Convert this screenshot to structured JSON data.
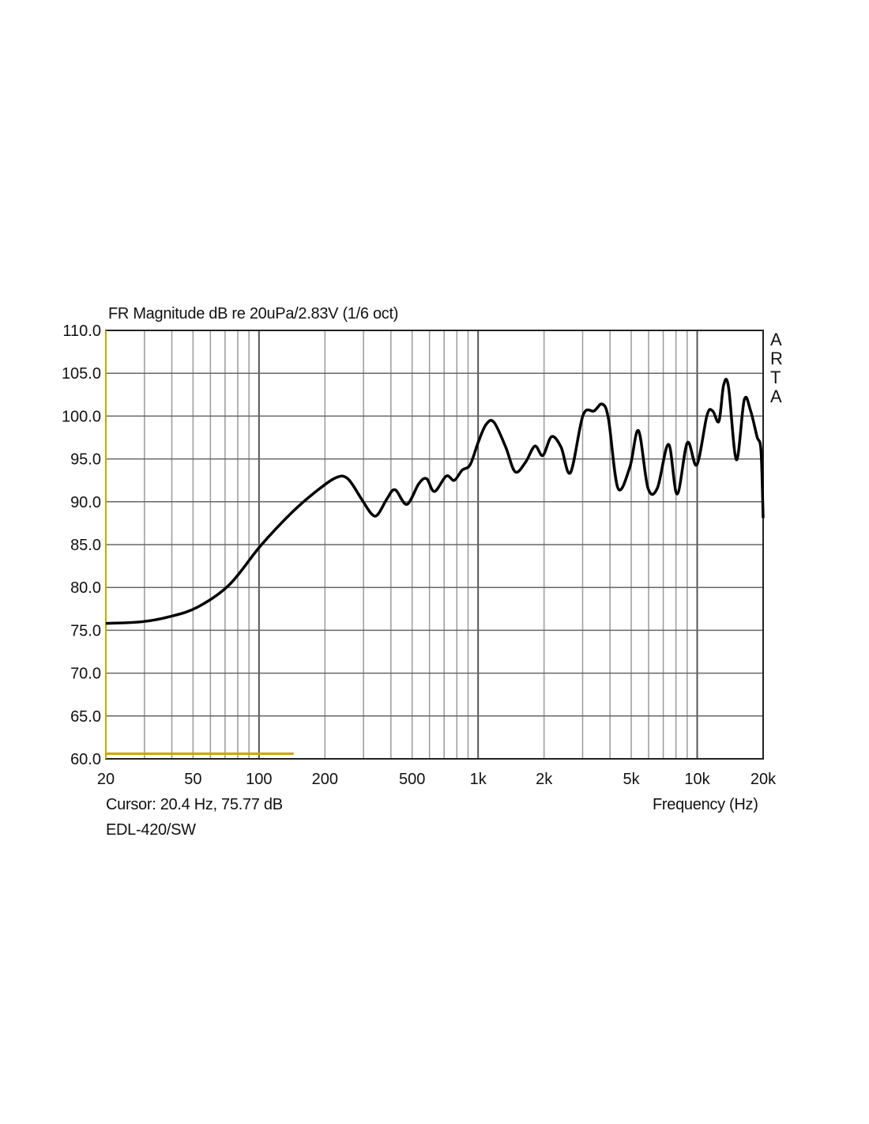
{
  "chart_data": {
    "type": "line",
    "title": "FR Magnitude dB re 20uPa/2.83V (1/6 oct)",
    "xlabel": "Frequency (Hz)",
    "ylabel": "",
    "xscale": "log",
    "xlim": [
      20,
      20000
    ],
    "ylim": [
      60,
      110
    ],
    "grid": true,
    "y_ticks": [
      "110.0",
      "105.0",
      "100.0",
      "95.0",
      "90.0",
      "85.0",
      "80.0",
      "75.0",
      "70.0",
      "65.0",
      "60.0"
    ],
    "x_ticks": [
      {
        "value": 20,
        "label": "20"
      },
      {
        "value": 50,
        "label": "50"
      },
      {
        "value": 100,
        "label": "100"
      },
      {
        "value": 200,
        "label": "200"
      },
      {
        "value": 500,
        "label": "500"
      },
      {
        "value": 1000,
        "label": "1k"
      },
      {
        "value": 2000,
        "label": "2k"
      },
      {
        "value": 5000,
        "label": "5k"
      },
      {
        "value": 10000,
        "label": "10k"
      },
      {
        "value": 20000,
        "label": "20k"
      }
    ],
    "watermark": "ARTA",
    "cursor_text": "Cursor: 20.4 Hz, 75.77 dB",
    "series_name": "EDL-420/SW",
    "cursor_marker": {
      "freq_range": [
        20,
        144
      ],
      "db": 60.6,
      "color": "#c8a800"
    },
    "series": [
      {
        "name": "EDL-420/SW",
        "color": "#000000",
        "x": [
          20,
          29.3,
          39.2,
          52.4,
          73.1,
          102,
          142,
          182,
          224,
          254,
          294,
          326,
          348,
          385,
          418,
          473,
          536,
          582,
          632,
          716,
          778,
          846,
          919,
          1000,
          1086,
          1180,
          1336,
          1476,
          1645,
          1816,
          1974,
          2164,
          2390,
          2640,
          3013,
          3385,
          3681,
          3935,
          4346,
          4923,
          5395,
          5960,
          6580,
          7400,
          8100,
          9020,
          9960,
          11090,
          11770,
          12570,
          13200,
          13900,
          15100,
          16400,
          17540,
          18750,
          19550,
          20000
        ],
        "y": [
          75.8,
          76.0,
          76.6,
          77.7,
          80.3,
          84.9,
          88.8,
          91.2,
          92.8,
          92.7,
          90.3,
          88.6,
          88.5,
          90.4,
          91.4,
          89.7,
          92.1,
          92.7,
          91.2,
          93.0,
          92.5,
          93.7,
          94.3,
          96.9,
          99.0,
          99.3,
          96.4,
          93.5,
          94.6,
          96.5,
          95.4,
          97.6,
          96.4,
          93.4,
          100.1,
          100.6,
          101.4,
          99.7,
          91.6,
          94.0,
          98.3,
          91.6,
          91.6,
          96.7,
          90.9,
          96.9,
          94.3,
          100.1,
          100.6,
          99.4,
          103.6,
          103.4,
          94.9,
          101.9,
          100.6,
          97.6,
          96.0,
          88.1
        ]
      }
    ]
  }
}
